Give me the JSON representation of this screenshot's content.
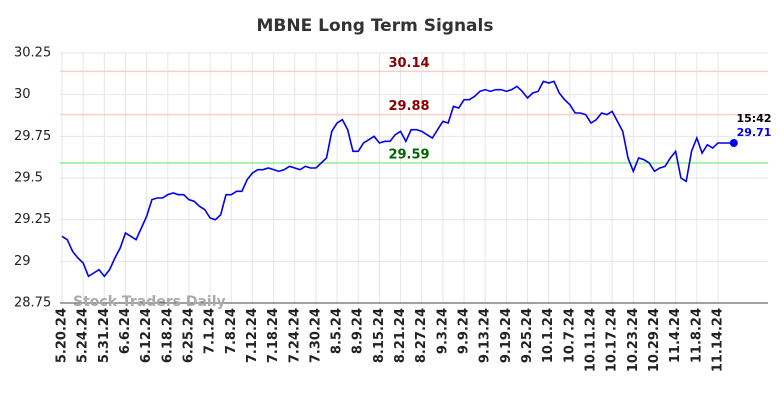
{
  "chart_data": {
    "type": "line",
    "title": "MBNE Long Term Signals",
    "watermark": "Stock Traders Daily",
    "last_time": "15:42",
    "categories": [
      "5.20.24",
      null,
      null,
      null,
      "5.24.24",
      null,
      null,
      null,
      "5.31.24",
      null,
      null,
      null,
      "6.6.24",
      null,
      null,
      null,
      "6.12.24",
      null,
      null,
      null,
      "6.18.24",
      null,
      null,
      null,
      "6.25.24",
      null,
      null,
      null,
      "7.1.24",
      null,
      null,
      null,
      "7.8.24",
      null,
      null,
      null,
      "7.12.24",
      null,
      null,
      null,
      "7.18.24",
      null,
      null,
      null,
      "7.24.24",
      null,
      null,
      null,
      "7.30.24",
      null,
      null,
      null,
      "8.5.24",
      null,
      null,
      null,
      "8.9.24",
      null,
      null,
      null,
      "8.15.24",
      null,
      null,
      null,
      "8.21.24",
      null,
      null,
      null,
      "8.27.24",
      null,
      null,
      null,
      "9.3.24",
      null,
      null,
      null,
      "9.9.24",
      null,
      null,
      null,
      "9.13.24",
      null,
      null,
      null,
      "9.19.24",
      null,
      null,
      null,
      "9.25.24",
      null,
      null,
      null,
      "10.1.24",
      null,
      null,
      null,
      "10.7.24",
      null,
      null,
      null,
      "10.11.24",
      null,
      null,
      null,
      "10.17.24",
      null,
      null,
      null,
      "10.23.24",
      null,
      null,
      null,
      "10.29.24",
      null,
      null,
      null,
      "11.4.24",
      null,
      null,
      null,
      "11.8.24",
      null,
      null,
      null,
      "11.14.24",
      null,
      null,
      null
    ],
    "series": [
      {
        "name": "MBNE",
        "color": "#0000ee",
        "values": [
          29.15,
          29.13,
          29.06,
          29.02,
          28.99,
          28.91,
          28.93,
          28.95,
          28.91,
          28.95,
          29.02,
          29.08,
          29.17,
          29.15,
          29.13,
          29.2,
          29.27,
          29.37,
          29.38,
          29.38,
          29.4,
          29.41,
          29.4,
          29.4,
          29.37,
          29.36,
          29.33,
          29.31,
          29.26,
          29.25,
          29.28,
          29.4,
          29.4,
          29.42,
          29.42,
          29.49,
          29.53,
          29.55,
          29.55,
          29.56,
          29.55,
          29.54,
          29.55,
          29.57,
          29.56,
          29.55,
          29.57,
          29.56,
          29.56,
          29.59,
          29.62,
          29.78,
          29.83,
          29.85,
          29.79,
          29.66,
          29.66,
          29.71,
          29.73,
          29.75,
          29.71,
          29.72,
          29.72,
          29.76,
          29.78,
          29.72,
          29.79,
          29.79,
          29.78,
          29.76,
          29.74,
          29.79,
          29.84,
          29.83,
          29.93,
          29.92,
          29.97,
          29.97,
          29.99,
          30.02,
          30.03,
          30.02,
          30.03,
          30.03,
          30.02,
          30.03,
          30.05,
          30.02,
          29.98,
          30.01,
          30.02,
          30.08,
          30.07,
          30.08,
          30.01,
          29.97,
          29.94,
          29.89,
          29.89,
          29.88,
          29.83,
          29.85,
          29.89,
          29.88,
          29.9,
          29.84,
          29.78,
          29.62,
          29.54,
          29.62,
          29.61,
          29.59,
          29.54,
          29.56,
          29.57,
          29.62,
          29.66,
          29.5,
          29.48,
          29.66,
          29.74,
          29.65,
          29.7,
          29.68,
          29.71,
          29.71,
          29.71,
          29.71
        ]
      }
    ],
    "hlines": [
      {
        "value": 30.14,
        "color": "#ffcccc",
        "label_color": "#8b0000"
      },
      {
        "value": 29.88,
        "color": "#ffcccc",
        "label_color": "#8b0000"
      },
      {
        "value": 29.59,
        "color": "#90ee90",
        "label_color": "#006400"
      }
    ],
    "ylim": [
      28.75,
      30.25
    ],
    "yticks": [
      28.75,
      29,
      29.25,
      29.5,
      29.75,
      30,
      30.25
    ],
    "grid": true
  }
}
